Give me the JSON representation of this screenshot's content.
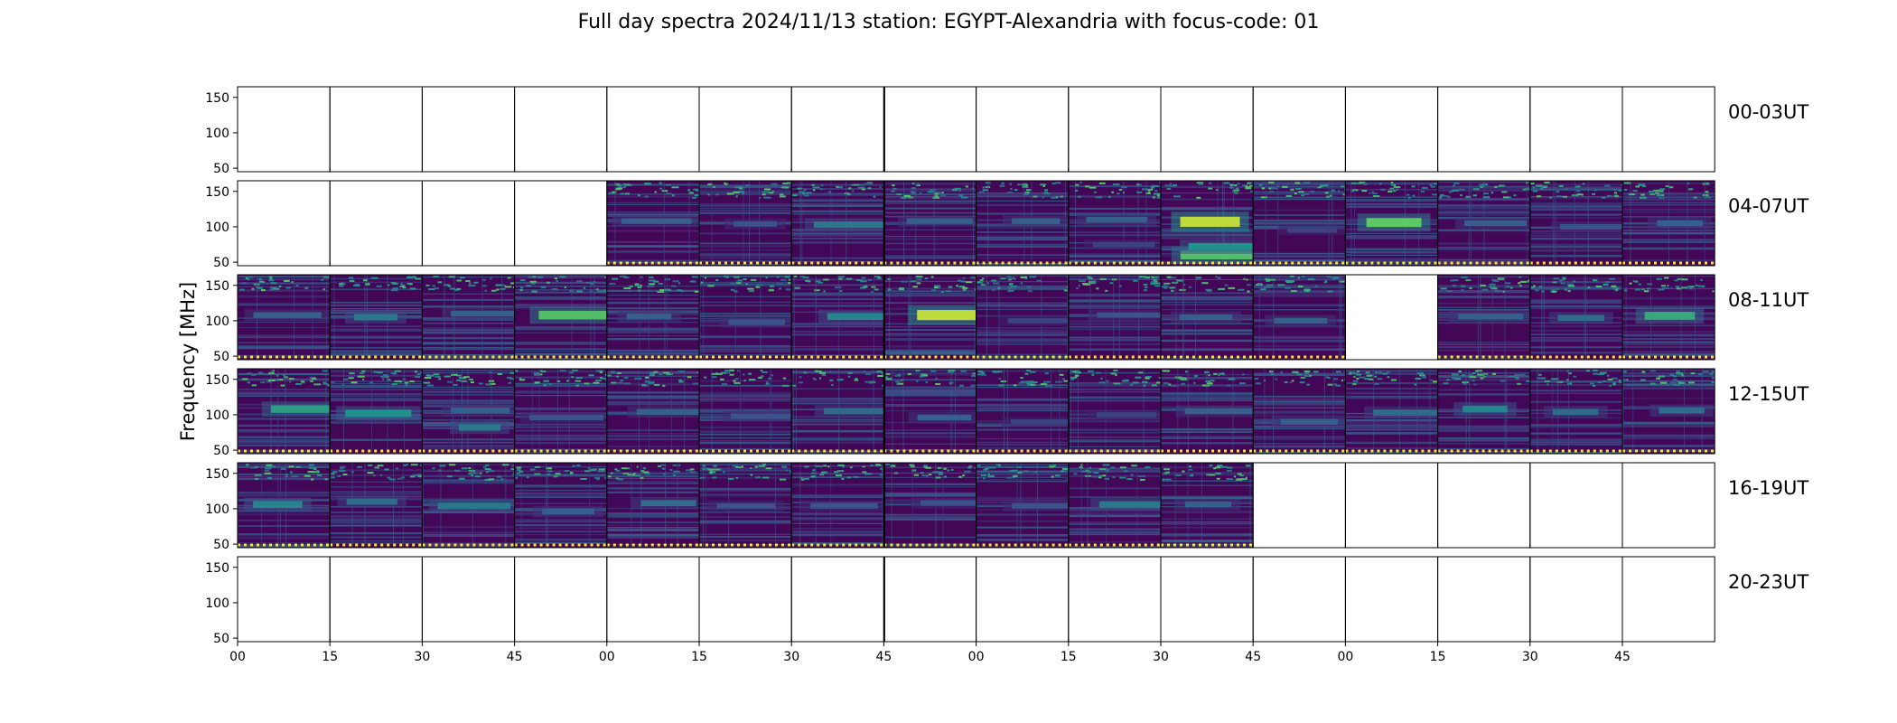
{
  "chart_data": {
    "type": "heatmap",
    "title": "Full day spectra 2024/11/13 station: EGYPT-Alexandria with focus-code: 01",
    "ylabel": "Frequency [MHz]",
    "xlabel": "",
    "y_ticks": [
      150,
      100,
      50
    ],
    "ylim": [
      45,
      165
    ],
    "x_tick_labels": [
      "00",
      "15",
      "30",
      "45",
      "00",
      "15",
      "30",
      "45",
      "00",
      "15",
      "30",
      "45",
      "00",
      "15",
      "30",
      "45"
    ],
    "colormap": "viridis",
    "colors": {
      "low": "#440154",
      "mid": "#21918c",
      "high": "#fde725"
    },
    "rows": [
      {
        "label": "00-03UT",
        "filled": [
          0,
          0,
          0,
          0,
          0,
          0,
          0,
          0,
          0,
          0,
          0,
          0,
          0,
          0,
          0,
          0
        ],
        "bands": [
          [],
          [],
          [],
          [],
          [],
          [],
          [],
          [],
          [],
          [],
          [],
          [],
          [],
          [],
          [],
          []
        ]
      },
      {
        "label": "04-07UT",
        "filled": [
          0,
          0,
          0,
          0,
          1,
          1,
          1,
          1,
          1,
          1,
          1,
          1,
          1,
          1,
          1,
          1
        ],
        "bands": [
          [],
          [],
          [],
          [],
          [
            [
              108,
              0.3
            ]
          ],
          [
            [
              104,
              0.25
            ]
          ],
          [
            [
              103,
              0.4
            ]
          ],
          [
            [
              108,
              0.3
            ]
          ],
          [
            [
              108,
              0.3
            ]
          ],
          [
            [
              110,
              0.3
            ],
            [
              75,
              0.2
            ]
          ],
          [
            [
              107,
              0.9
            ],
            [
              60,
              0.7
            ],
            [
              72,
              0.5
            ]
          ],
          [
            [
              95,
              0.2
            ]
          ],
          [
            [
              106,
              0.75
            ]
          ],
          [
            [
              105,
              0.3
            ]
          ],
          [
            [
              100,
              0.25
            ]
          ],
          [
            [
              105,
              0.3
            ]
          ]
        ]
      },
      {
        "label": "08-11UT",
        "filled": [
          1,
          1,
          1,
          1,
          1,
          1,
          1,
          1,
          1,
          1,
          1,
          1,
          0,
          1,
          1,
          1
        ],
        "bands": [
          [
            [
              108,
              0.3
            ]
          ],
          [
            [
              105,
              0.4
            ]
          ],
          [
            [
              110,
              0.3
            ]
          ],
          [
            [
              108,
              0.7
            ]
          ],
          [
            [
              106,
              0.3
            ]
          ],
          [
            [
              98,
              0.25
            ]
          ],
          [
            [
              106,
              0.45
            ]
          ],
          [
            [
              108,
              0.9
            ]
          ],
          [
            [
              100,
              0.2
            ]
          ],
          [
            [
              108,
              0.25
            ]
          ],
          [
            [
              105,
              0.3
            ]
          ],
          [
            [
              100,
              0.3
            ]
          ],
          [],
          [
            [
              106,
              0.3
            ]
          ],
          [
            [
              104,
              0.35
            ]
          ],
          [
            [
              107,
              0.6
            ]
          ]
        ]
      },
      {
        "label": "12-15UT",
        "filled": [
          1,
          1,
          1,
          1,
          1,
          1,
          1,
          1,
          1,
          1,
          1,
          1,
          1,
          1,
          1,
          1
        ],
        "bands": [
          [
            [
              108,
              0.55
            ]
          ],
          [
            [
              102,
              0.5
            ]
          ],
          [
            [
              106,
              0.3
            ],
            [
              82,
              0.4
            ]
          ],
          [
            [
              96,
              0.25
            ]
          ],
          [
            [
              104,
              0.3
            ]
          ],
          [
            [
              98,
              0.25
            ]
          ],
          [
            [
              105,
              0.35
            ]
          ],
          [
            [
              96,
              0.3
            ]
          ],
          [
            [
              90,
              0.2
            ]
          ],
          [
            [
              100,
              0.2
            ]
          ],
          [
            [
              105,
              0.3
            ]
          ],
          [
            [
              90,
              0.3
            ]
          ],
          [
            [
              103,
              0.35
            ]
          ],
          [
            [
              108,
              0.45
            ]
          ],
          [
            [
              104,
              0.35
            ]
          ],
          [
            [
              106,
              0.35
            ]
          ]
        ]
      },
      {
        "label": "16-19UT",
        "filled": [
          1,
          1,
          1,
          1,
          1,
          1,
          1,
          1,
          1,
          1,
          1,
          0,
          0,
          0,
          0,
          0
        ],
        "bands": [
          [
            [
              106,
              0.45
            ]
          ],
          [
            [
              110,
              0.35
            ]
          ],
          [
            [
              104,
              0.4
            ]
          ],
          [
            [
              96,
              0.3
            ]
          ],
          [
            [
              108,
              0.35
            ]
          ],
          [
            [
              104,
              0.25
            ]
          ],
          [
            [
              104,
              0.25
            ]
          ],
          [
            [
              108,
              0.25
            ]
          ],
          [
            [
              104,
              0.25
            ]
          ],
          [
            [
              106,
              0.4
            ]
          ],
          [
            [
              106,
              0.3
            ]
          ],
          [],
          [],
          [],
          [],
          []
        ]
      },
      {
        "label": "20-23UT",
        "filled": [
          0,
          0,
          0,
          0,
          0,
          0,
          0,
          0,
          0,
          0,
          0,
          0,
          0,
          0,
          0,
          0
        ],
        "bands": [
          [],
          [],
          [],
          [],
          [],
          [],
          [],
          [],
          [],
          [],
          [],
          [],
          [],
          [],
          [],
          []
        ]
      }
    ]
  }
}
